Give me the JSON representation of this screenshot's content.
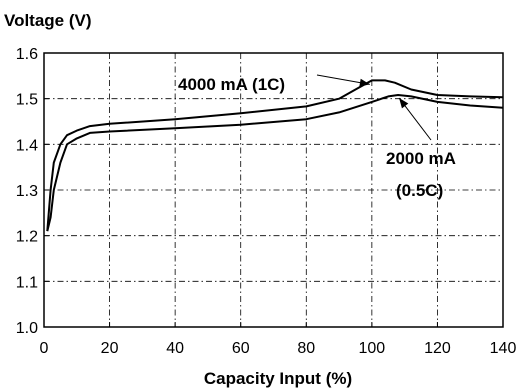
{
  "chart_data": {
    "type": "line",
    "title": "",
    "ylabel": "Voltage (V)",
    "xlabel": "Capacity Input  (%)",
    "xlim": [
      0,
      140
    ],
    "ylim": [
      1.0,
      1.6
    ],
    "grid": true,
    "grid_style": "dash-dot",
    "x_ticks": [
      0,
      20,
      40,
      60,
      80,
      100,
      120,
      140
    ],
    "y_ticks": [
      1.0,
      1.1,
      1.2,
      1.3,
      1.4,
      1.5,
      1.6
    ],
    "x_tick_labels": [
      "0",
      "20",
      "40",
      "60",
      "80",
      "100",
      "120",
      "140"
    ],
    "y_tick_labels": [
      "1.0",
      "1.1",
      "1.2",
      "1.3",
      "1.4",
      "1.5",
      "1.6"
    ],
    "series": [
      {
        "name": "4000 mA (1C)",
        "x": [
          1,
          2,
          3,
          5,
          7,
          10,
          14,
          20,
          40,
          60,
          80,
          90,
          95,
          100,
          104,
          107,
          112,
          120,
          130,
          140
        ],
        "y": [
          1.21,
          1.3,
          1.36,
          1.4,
          1.42,
          1.43,
          1.44,
          1.445,
          1.455,
          1.468,
          1.483,
          1.5,
          1.52,
          1.54,
          1.54,
          1.535,
          1.52,
          1.508,
          1.505,
          1.503
        ]
      },
      {
        "name": "2000 mA (0.5C)",
        "x": [
          1,
          2,
          3,
          5,
          7,
          10,
          14,
          20,
          40,
          60,
          80,
          90,
          100,
          105,
          108,
          112,
          120,
          130,
          140
        ],
        "y": [
          1.21,
          1.24,
          1.3,
          1.36,
          1.4,
          1.413,
          1.425,
          1.428,
          1.435,
          1.443,
          1.455,
          1.47,
          1.493,
          1.505,
          1.508,
          1.505,
          1.493,
          1.485,
          1.48
        ]
      }
    ],
    "annotations": [
      {
        "text": "4000 mA (1C)",
        "points_to_series": 0,
        "x": 100,
        "y": 1.54
      },
      {
        "text": "2000 mA",
        "points_to_series": 1,
        "x": 108,
        "y": 1.508
      },
      {
        "text": "(0.5C)",
        "points_to_series": 1
      }
    ]
  }
}
